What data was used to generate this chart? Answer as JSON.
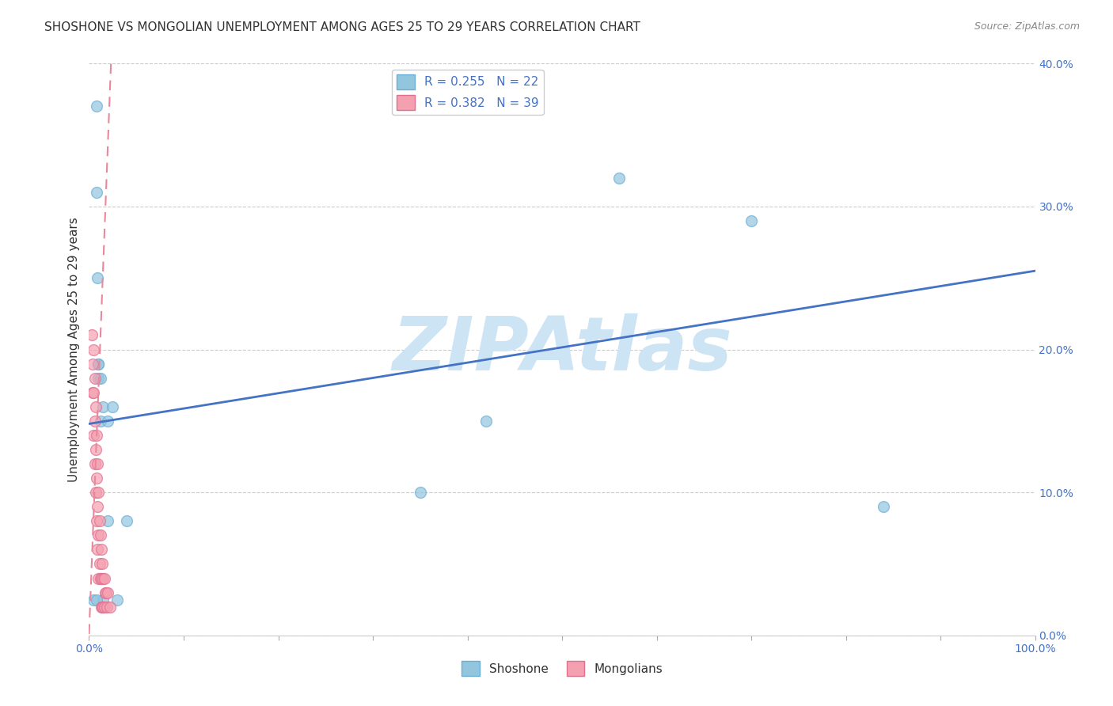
{
  "title": "SHOSHONE VS MONGOLIAN UNEMPLOYMENT AMONG AGES 25 TO 29 YEARS CORRELATION CHART",
  "source": "Source: ZipAtlas.com",
  "ylabel": "Unemployment Among Ages 25 to 29 years",
  "xlim": [
    0,
    1.0
  ],
  "ylim": [
    0,
    0.4
  ],
  "xticks": [
    0.0,
    0.1,
    0.2,
    0.3,
    0.4,
    0.5,
    0.6,
    0.7,
    0.8,
    0.9,
    1.0
  ],
  "xticklabels_show": [
    "0.0%",
    "",
    "",
    "",
    "",
    "",
    "",
    "",
    "",
    "",
    "100.0%"
  ],
  "yticks": [
    0.0,
    0.1,
    0.2,
    0.3,
    0.4
  ],
  "yticklabels": [
    "0.0%",
    "10.0%",
    "20.0%",
    "30.0%",
    "40.0%"
  ],
  "shoshone_color": "#92c5de",
  "mongolian_color": "#f4a0b0",
  "shoshone_edge_color": "#6baed6",
  "mongolian_edge_color": "#e07090",
  "shoshone_R": 0.255,
  "shoshone_N": 22,
  "mongolian_R": 0.382,
  "mongolian_N": 39,
  "shoshone_x": [
    0.008,
    0.008,
    0.009,
    0.01,
    0.01,
    0.012,
    0.012,
    0.015,
    0.015,
    0.02,
    0.02,
    0.025,
    0.03,
    0.04,
    0.005,
    0.35,
    0.42,
    0.56,
    0.7,
    0.84,
    0.01,
    0.008
  ],
  "shoshone_y": [
    0.37,
    0.31,
    0.25,
    0.19,
    0.18,
    0.18,
    0.15,
    0.16,
    0.025,
    0.08,
    0.15,
    0.16,
    0.025,
    0.08,
    0.025,
    0.1,
    0.15,
    0.32,
    0.29,
    0.09,
    0.19,
    0.025
  ],
  "mongolian_x": [
    0.003,
    0.004,
    0.004,
    0.005,
    0.005,
    0.005,
    0.006,
    0.006,
    0.006,
    0.007,
    0.007,
    0.007,
    0.008,
    0.008,
    0.008,
    0.009,
    0.009,
    0.009,
    0.01,
    0.01,
    0.01,
    0.011,
    0.011,
    0.012,
    0.012,
    0.013,
    0.013,
    0.013,
    0.014,
    0.014,
    0.015,
    0.015,
    0.016,
    0.016,
    0.017,
    0.018,
    0.019,
    0.02,
    0.022
  ],
  "mongolian_y": [
    0.21,
    0.19,
    0.17,
    0.2,
    0.17,
    0.14,
    0.18,
    0.15,
    0.12,
    0.16,
    0.13,
    0.1,
    0.14,
    0.11,
    0.08,
    0.12,
    0.09,
    0.06,
    0.1,
    0.07,
    0.04,
    0.08,
    0.05,
    0.07,
    0.04,
    0.06,
    0.04,
    0.02,
    0.05,
    0.02,
    0.04,
    0.02,
    0.04,
    0.02,
    0.03,
    0.03,
    0.02,
    0.03,
    0.02
  ],
  "shoshone_trendline_x": [
    0.0,
    1.0
  ],
  "shoshone_trendline_y": [
    0.148,
    0.255
  ],
  "mongolian_trendline_x": [
    0.0,
    0.022
  ],
  "mongolian_trendline_y": [
    0.001,
    0.38
  ],
  "trend_blue": "#4472c4",
  "trend_pink": "#e8889a",
  "watermark": "ZIPAtlas",
  "watermark_color": "#cde4f5",
  "background_color": "#ffffff",
  "grid_color": "#cccccc",
  "title_fontsize": 11,
  "axis_label_fontsize": 11,
  "tick_fontsize": 10,
  "legend_fontsize": 11,
  "source_fontsize": 9
}
